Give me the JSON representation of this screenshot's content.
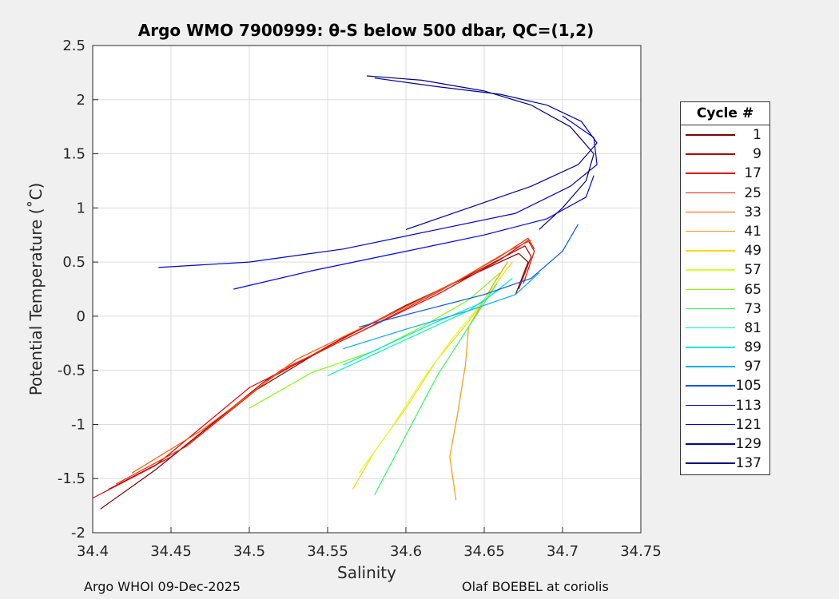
{
  "chart_data": {
    "type": "line",
    "title": "Argo WMO 7900999: θ-S below 500 dbar,  QC=(1,2)",
    "xlabel": "Salinity",
    "ylabel": "Potential Temperature (˚C)",
    "xlim": [
      34.4,
      34.75
    ],
    "ylim": [
      -2,
      2.5
    ],
    "xticks": [
      "34.4",
      "34.45",
      "34.5",
      "34.55",
      "34.6",
      "34.65",
      "34.7",
      "34.75"
    ],
    "yticks": [
      "-2",
      "-1.5",
      "-1",
      "-0.5",
      "0",
      "0.5",
      "1",
      "1.5",
      "2",
      "2.5"
    ],
    "grid": true,
    "legend_title": "Cycle #",
    "legend_position": "right",
    "series": [
      {
        "name": "1",
        "color": "#800000",
        "x": [
          34.405,
          34.44,
          34.5,
          34.55,
          34.6,
          34.645,
          34.672,
          34.678,
          34.67
        ],
        "y": [
          -1.78,
          -1.42,
          -0.72,
          -0.28,
          0.1,
          0.4,
          0.58,
          0.5,
          0.2
        ]
      },
      {
        "name": "9",
        "color": "#b30000",
        "x": [
          34.41,
          34.45,
          34.51,
          34.56,
          34.61,
          34.65,
          34.676,
          34.68,
          34.672
        ],
        "y": [
          -1.6,
          -1.3,
          -0.6,
          -0.2,
          0.16,
          0.45,
          0.65,
          0.55,
          0.25
        ]
      },
      {
        "name": "17",
        "color": "#e60000",
        "x": [
          34.4,
          34.44,
          34.5,
          34.56,
          34.62,
          34.66,
          34.678,
          34.682,
          34.675
        ],
        "y": [
          -1.68,
          -1.38,
          -0.66,
          -0.22,
          0.2,
          0.52,
          0.7,
          0.6,
          0.3
        ]
      },
      {
        "name": "25",
        "color": "#ff1a00",
        "x": [
          34.415,
          34.46,
          34.52,
          34.57,
          34.62,
          34.66,
          34.678,
          34.682
        ],
        "y": [
          -1.55,
          -1.2,
          -0.5,
          -0.15,
          0.22,
          0.55,
          0.72,
          0.62
        ]
      },
      {
        "name": "33",
        "color": "#ff5500",
        "x": [
          34.425,
          34.47,
          34.53,
          34.58,
          34.63,
          34.665,
          34.68
        ],
        "y": [
          -1.45,
          -1.05,
          -0.4,
          -0.05,
          0.3,
          0.6,
          0.7
        ]
      },
      {
        "name": "41",
        "color": "#ff9900",
        "x": [
          34.632,
          34.628,
          34.633,
          34.638,
          34.64,
          34.648,
          34.656,
          34.665
        ],
        "y": [
          -1.7,
          -1.3,
          -0.9,
          -0.45,
          -0.1,
          0.1,
          0.3,
          0.5
        ]
      },
      {
        "name": "49",
        "color": "#ffd500",
        "x": [
          34.566,
          34.58,
          34.6,
          34.62,
          34.64,
          34.655,
          34.668
        ],
        "y": [
          -1.6,
          -1.25,
          -0.85,
          -0.4,
          -0.05,
          0.25,
          0.5
        ]
      },
      {
        "name": "57",
        "color": "#d4ff2a",
        "x": [
          34.57,
          34.59,
          34.61,
          34.63,
          34.65,
          34.665
        ],
        "y": [
          -1.45,
          -1.05,
          -0.6,
          -0.2,
          0.15,
          0.45
        ]
      },
      {
        "name": "65",
        "color": "#80ff00",
        "x": [
          34.5,
          34.54,
          34.58,
          34.61,
          34.64,
          34.66
        ],
        "y": [
          -0.85,
          -0.52,
          -0.32,
          -0.1,
          0.15,
          0.4
        ]
      },
      {
        "name": "73",
        "color": "#2aff55",
        "x": [
          34.58,
          34.6,
          34.62,
          34.64,
          34.658
        ],
        "y": [
          -1.65,
          -1.1,
          -0.55,
          -0.1,
          0.3
        ]
      },
      {
        "name": "81",
        "color": "#00ffaa",
        "x": [
          34.55,
          34.58,
          34.61,
          34.64,
          34.66
        ],
        "y": [
          -0.55,
          -0.35,
          -0.15,
          0.05,
          0.25
        ]
      },
      {
        "name": "89",
        "color": "#00e6e6",
        "x": [
          34.56,
          34.59,
          34.62,
          34.648,
          34.668
        ],
        "y": [
          -0.45,
          -0.25,
          -0.05,
          0.12,
          0.35
        ]
      },
      {
        "name": "97",
        "color": "#00aaff",
        "x": [
          34.56,
          34.6,
          34.64,
          34.67,
          34.685
        ],
        "y": [
          -0.3,
          -0.12,
          0.05,
          0.2,
          0.4
        ]
      },
      {
        "name": "105",
        "color": "#0055ff",
        "x": [
          34.57,
          34.61,
          34.65,
          34.68,
          34.7,
          34.71
        ],
        "y": [
          -0.1,
          0.05,
          0.2,
          0.35,
          0.6,
          0.85
        ]
      },
      {
        "name": "113",
        "color": "#0000ff",
        "x": [
          34.49,
          34.54,
          34.6,
          34.65,
          34.69,
          34.715,
          34.72
        ],
        "y": [
          0.25,
          0.42,
          0.6,
          0.75,
          0.9,
          1.1,
          1.3
        ]
      },
      {
        "name": "121",
        "color": "#0000d4",
        "x": [
          34.442,
          34.5,
          34.56,
          34.62,
          34.67,
          34.705,
          34.722,
          34.72,
          34.7
        ],
        "y": [
          0.45,
          0.5,
          0.62,
          0.8,
          0.95,
          1.2,
          1.4,
          1.65,
          1.85
        ]
      },
      {
        "name": "129",
        "color": "#0000aa",
        "x": [
          34.6,
          34.64,
          34.68,
          34.71,
          34.722,
          34.712,
          34.69,
          34.66,
          34.62,
          34.58
        ],
        "y": [
          0.8,
          1.0,
          1.2,
          1.4,
          1.6,
          1.8,
          1.95,
          2.05,
          2.12,
          2.2
        ]
      },
      {
        "name": "137",
        "color": "#000080",
        "x": [
          34.575,
          34.61,
          34.65,
          34.68,
          34.705,
          34.72,
          34.715,
          34.7,
          34.685
        ],
        "y": [
          2.22,
          2.18,
          2.08,
          1.95,
          1.75,
          1.5,
          1.25,
          1.0,
          0.8
        ]
      }
    ]
  },
  "footer": {
    "left": "Argo WHOI 09-Dec-2025",
    "right": "Olaf BOEBEL at coriolis"
  }
}
